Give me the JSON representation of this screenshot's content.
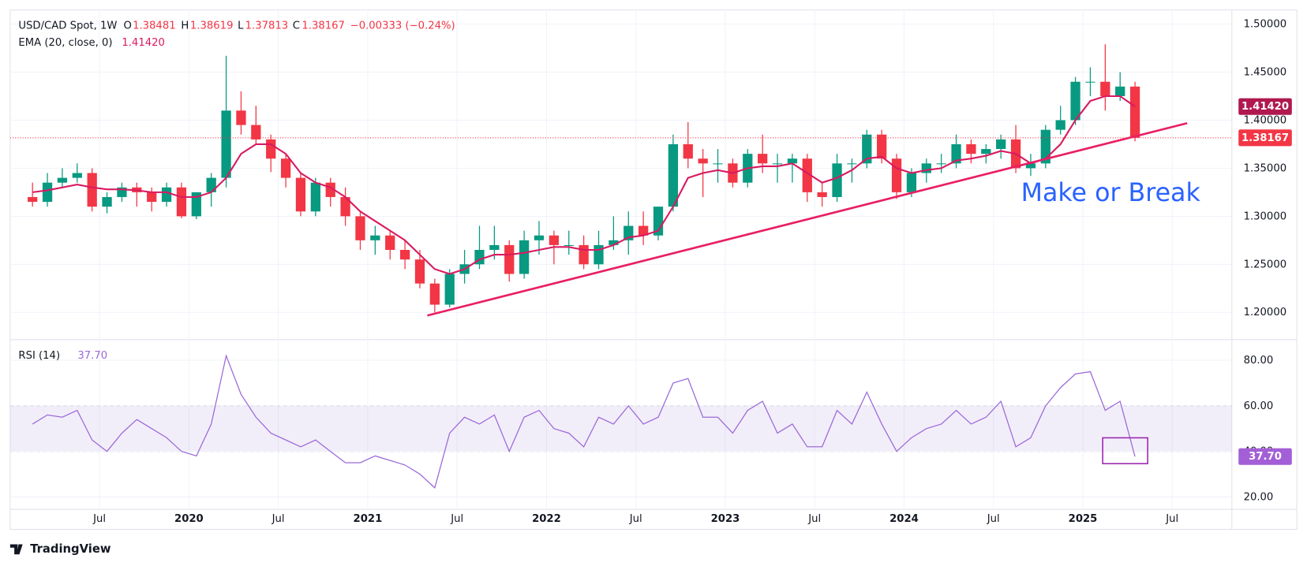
{
  "chart_data": {
    "type": "candlestick",
    "header": {
      "symbol": "USD/CAD Spot, 1W",
      "ohlc": [
        {
          "label": "O",
          "value": 1.38481
        },
        {
          "label": "H",
          "value": 1.38619
        },
        {
          "label": "L",
          "value": 1.37813
        },
        {
          "label": "C",
          "value": 1.38167
        }
      ],
      "change": "−0.00333 (−0.24%)"
    },
    "colors": {
      "up": "#089981",
      "down": "#f23645"
    },
    "grid": true,
    "x": [
      "2019-02",
      "2019-03",
      "2019-04",
      "2019-05",
      "2019-06",
      "2019-07",
      "2019-08",
      "2019-09",
      "2019-10",
      "2019-11",
      "2019-12",
      "2020-01",
      "2020-02",
      "2020-03",
      "2020-04",
      "2020-05",
      "2020-06",
      "2020-07",
      "2020-08",
      "2020-09",
      "2020-10",
      "2020-11",
      "2020-12",
      "2021-01",
      "2021-02",
      "2021-03",
      "2021-04",
      "2021-05",
      "2021-06",
      "2021-07",
      "2021-08",
      "2021-09",
      "2021-10",
      "2021-11",
      "2021-12",
      "2022-01",
      "2022-02",
      "2022-03",
      "2022-04",
      "2022-05",
      "2022-06",
      "2022-07",
      "2022-08",
      "2022-09",
      "2022-10",
      "2022-11",
      "2022-12",
      "2023-01",
      "2023-02",
      "2023-03",
      "2023-04",
      "2023-05",
      "2023-06",
      "2023-07",
      "2023-08",
      "2023-09",
      "2023-10",
      "2023-11",
      "2023-12",
      "2024-01",
      "2024-02",
      "2024-03",
      "2024-04",
      "2024-05",
      "2024-06",
      "2024-07",
      "2024-08",
      "2024-09",
      "2024-10",
      "2024-11",
      "2024-12",
      "2025-01",
      "2025-02",
      "2025-03",
      "2025-04"
    ],
    "open": [
      1.32,
      1.315,
      1.335,
      1.34,
      1.345,
      1.31,
      1.32,
      1.33,
      1.325,
      1.315,
      1.33,
      1.3,
      1.325,
      1.34,
      1.41,
      1.395,
      1.38,
      1.36,
      1.34,
      1.305,
      1.335,
      1.32,
      1.3,
      1.275,
      1.28,
      1.265,
      1.255,
      1.23,
      1.208,
      1.24,
      1.25,
      1.265,
      1.27,
      1.24,
      1.275,
      1.28,
      1.27,
      1.27,
      1.25,
      1.27,
      1.275,
      1.29,
      1.28,
      1.31,
      1.375,
      1.36,
      1.355,
      1.355,
      1.335,
      1.365,
      1.355,
      1.355,
      1.36,
      1.325,
      1.32,
      1.355,
      1.355,
      1.385,
      1.36,
      1.325,
      1.345,
      1.355,
      1.355,
      1.375,
      1.365,
      1.37,
      1.38,
      1.35,
      1.355,
      1.39,
      1.4,
      1.44,
      1.44,
      1.425,
      1.435
    ],
    "high": [
      1.335,
      1.345,
      1.35,
      1.355,
      1.35,
      1.325,
      1.335,
      1.335,
      1.33,
      1.335,
      1.335,
      1.325,
      1.345,
      1.467,
      1.43,
      1.415,
      1.385,
      1.365,
      1.345,
      1.34,
      1.34,
      1.33,
      1.305,
      1.29,
      1.285,
      1.275,
      1.265,
      1.235,
      1.245,
      1.265,
      1.29,
      1.29,
      1.275,
      1.285,
      1.295,
      1.285,
      1.285,
      1.28,
      1.285,
      1.3,
      1.305,
      1.305,
      1.31,
      1.385,
      1.398,
      1.37,
      1.37,
      1.36,
      1.37,
      1.385,
      1.365,
      1.365,
      1.365,
      1.335,
      1.365,
      1.36,
      1.39,
      1.39,
      1.365,
      1.35,
      1.36,
      1.365,
      1.385,
      1.38,
      1.375,
      1.385,
      1.395,
      1.365,
      1.395,
      1.415,
      1.445,
      1.455,
      1.479,
      1.45,
      1.44
    ],
    "low": [
      1.31,
      1.31,
      1.33,
      1.335,
      1.305,
      1.303,
      1.315,
      1.31,
      1.305,
      1.31,
      1.298,
      1.297,
      1.31,
      1.33,
      1.385,
      1.375,
      1.346,
      1.33,
      1.3,
      1.3,
      1.31,
      1.29,
      1.265,
      1.26,
      1.255,
      1.245,
      1.225,
      1.2,
      1.205,
      1.23,
      1.245,
      1.255,
      1.232,
      1.235,
      1.26,
      1.25,
      1.26,
      1.245,
      1.245,
      1.265,
      1.26,
      1.27,
      1.275,
      1.305,
      1.35,
      1.32,
      1.335,
      1.33,
      1.33,
      1.345,
      1.335,
      1.335,
      1.315,
      1.31,
      1.315,
      1.335,
      1.35,
      1.355,
      1.318,
      1.32,
      1.335,
      1.345,
      1.35,
      1.355,
      1.355,
      1.36,
      1.345,
      1.342,
      1.35,
      1.385,
      1.395,
      1.425,
      1.41,
      1.42,
      1.378
    ],
    "close": [
      1.315,
      1.335,
      1.34,
      1.345,
      1.31,
      1.32,
      1.33,
      1.325,
      1.315,
      1.33,
      1.3,
      1.325,
      1.34,
      1.41,
      1.395,
      1.38,
      1.36,
      1.34,
      1.305,
      1.335,
      1.32,
      1.3,
      1.275,
      1.28,
      1.265,
      1.255,
      1.23,
      1.208,
      1.24,
      1.25,
      1.265,
      1.27,
      1.24,
      1.275,
      1.28,
      1.27,
      1.27,
      1.25,
      1.27,
      1.275,
      1.29,
      1.28,
      1.31,
      1.375,
      1.36,
      1.355,
      1.355,
      1.335,
      1.365,
      1.355,
      1.355,
      1.36,
      1.325,
      1.32,
      1.355,
      1.355,
      1.385,
      1.36,
      1.325,
      1.345,
      1.355,
      1.355,
      1.375,
      1.365,
      1.37,
      1.38,
      1.35,
      1.355,
      1.39,
      1.4,
      1.44,
      1.44,
      1.425,
      1.435,
      1.38167
    ],
    "xlim": [
      "2019-01",
      "2025-11"
    ],
    "xticks": [
      {
        "value": "2019-07",
        "label": "Jul"
      },
      {
        "value": "2020-01",
        "label": "2020"
      },
      {
        "value": "2020-07",
        "label": "Jul"
      },
      {
        "value": "2021-01",
        "label": "2021"
      },
      {
        "value": "2021-07",
        "label": "Jul"
      },
      {
        "value": "2022-01",
        "label": "2022"
      },
      {
        "value": "2022-07",
        "label": "Jul"
      },
      {
        "value": "2023-01",
        "label": "2023"
      },
      {
        "value": "2023-07",
        "label": "Jul"
      },
      {
        "value": "2024-01",
        "label": "2024"
      },
      {
        "value": "2024-07",
        "label": "Jul"
      },
      {
        "value": "2025-01",
        "label": "2025"
      },
      {
        "value": "2025-07",
        "label": "Jul"
      }
    ],
    "ylim": [
      1.1725,
      1.5147
    ],
    "yticks": [
      {
        "value": 1.2,
        "label": "1.20000"
      },
      {
        "value": 1.25,
        "label": "1.25000"
      },
      {
        "value": 1.3,
        "label": "1.30000"
      },
      {
        "value": 1.35,
        "label": "1.35000"
      },
      {
        "value": 1.4,
        "label": "1.40000"
      },
      {
        "value": 1.45,
        "label": "1.45000"
      },
      {
        "value": 1.5,
        "label": "1.50000"
      }
    ],
    "ema": {
      "name": "EMA (20, close, 0)",
      "color": "#d81b60",
      "last": {
        "value": 1.4142,
        "label": "1.41420"
      },
      "values": [
        1.325,
        1.327,
        1.33,
        1.333,
        1.33,
        1.328,
        1.328,
        1.327,
        1.325,
        1.325,
        1.32,
        1.32,
        1.325,
        1.34,
        1.365,
        1.375,
        1.375,
        1.365,
        1.345,
        1.335,
        1.33,
        1.32,
        1.305,
        1.295,
        1.285,
        1.275,
        1.26,
        1.245,
        1.24,
        1.245,
        1.255,
        1.26,
        1.26,
        1.262,
        1.265,
        1.268,
        1.268,
        1.265,
        1.265,
        1.27,
        1.278,
        1.28,
        1.285,
        1.31,
        1.34,
        1.345,
        1.348,
        1.345,
        1.35,
        1.352,
        1.352,
        1.355,
        1.345,
        1.335,
        1.34,
        1.348,
        1.36,
        1.362,
        1.35,
        1.345,
        1.348,
        1.35,
        1.358,
        1.36,
        1.363,
        1.368,
        1.365,
        1.355,
        1.36,
        1.375,
        1.4,
        1.42,
        1.425,
        1.425,
        1.4142
      ]
    },
    "trendline": {
      "color": "#e91e63",
      "x": [
        "2021-05",
        "2025-08"
      ],
      "y": [
        1.1967,
        1.3969
      ]
    },
    "annotation": {
      "text": "Make or Break",
      "color": "#2962ff"
    },
    "rsi": {
      "name": "RSI (14)",
      "color": "#9c6ad9",
      "last": {
        "value": 37.7,
        "label": "37.70"
      },
      "values": [
        52,
        56,
        55,
        58,
        45,
        40,
        48,
        54,
        50,
        46,
        40,
        38,
        52,
        82,
        65,
        55,
        48,
        45,
        42,
        45,
        40,
        35,
        35,
        38,
        36,
        34,
        30,
        24,
        48,
        55,
        52,
        56,
        40,
        55,
        58,
        50,
        48,
        42,
        55,
        52,
        60,
        52,
        55,
        70,
        72,
        55,
        55,
        48,
        58,
        62,
        48,
        52,
        42,
        42,
        58,
        52,
        66,
        52,
        40,
        46,
        50,
        52,
        58,
        52,
        55,
        62,
        42,
        46,
        60,
        68,
        74,
        75,
        58,
        62,
        37.7
      ],
      "ylim": [
        14.5,
        89.1
      ],
      "yticks": [
        {
          "value": 20,
          "label": "20.00"
        },
        {
          "value": 40,
          "label": "40.00"
        },
        {
          "value": 60,
          "label": "60.00"
        },
        {
          "value": 80,
          "label": "80.00"
        }
      ],
      "band": [
        40,
        60
      ]
    },
    "branding": "TradingView"
  }
}
